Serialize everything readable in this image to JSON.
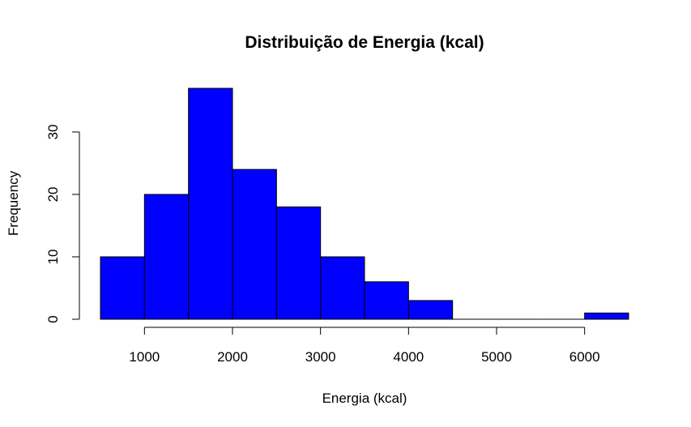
{
  "chart_data": {
    "type": "bar",
    "title": "Distribuição de Energia (kcal)",
    "xlabel": "Energia (kcal)",
    "ylabel": "Frequency",
    "bins": [
      {
        "start": 500,
        "end": 1000,
        "count": 10
      },
      {
        "start": 1000,
        "end": 1500,
        "count": 20
      },
      {
        "start": 1500,
        "end": 2000,
        "count": 37
      },
      {
        "start": 2000,
        "end": 2500,
        "count": 24
      },
      {
        "start": 2500,
        "end": 3000,
        "count": 18
      },
      {
        "start": 3000,
        "end": 3500,
        "count": 10
      },
      {
        "start": 3500,
        "end": 4000,
        "count": 6
      },
      {
        "start": 4000,
        "end": 4500,
        "count": 3
      },
      {
        "start": 4500,
        "end": 5000,
        "count": 0
      },
      {
        "start": 5000,
        "end": 5500,
        "count": 0
      },
      {
        "start": 5500,
        "end": 6000,
        "count": 0
      },
      {
        "start": 6000,
        "end": 6500,
        "count": 1
      }
    ],
    "xlim": [
      500,
      6500
    ],
    "ylim": [
      0,
      37
    ],
    "xticks": [
      1000,
      2000,
      3000,
      4000,
      5000,
      6000
    ],
    "yticks": [
      0,
      10,
      20,
      30
    ],
    "bar_color": "#0000ff",
    "edge_color": "#000000",
    "grid": false,
    "legend": false
  }
}
